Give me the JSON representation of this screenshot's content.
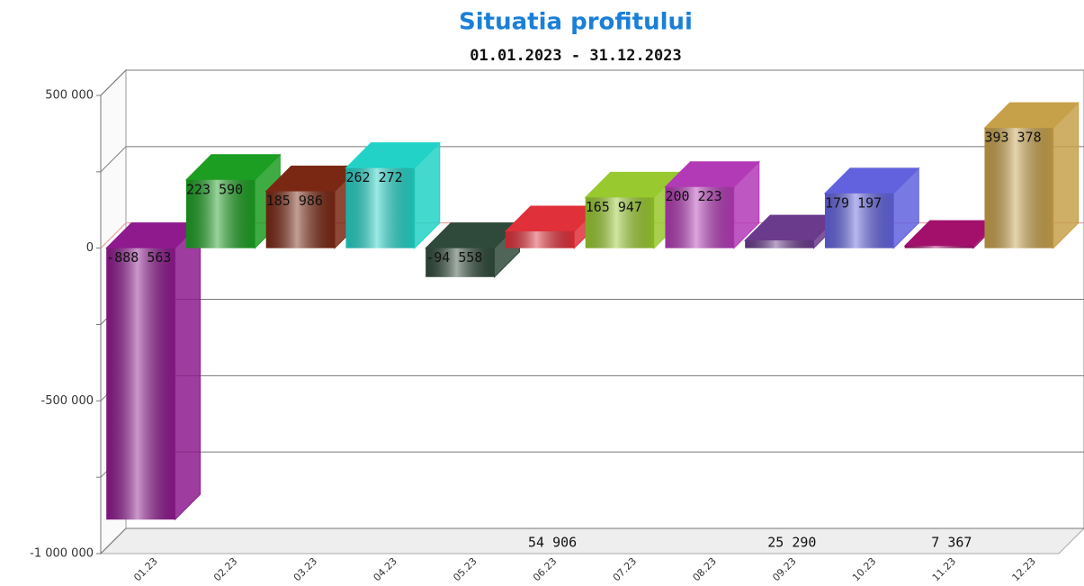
{
  "chart_data": {
    "type": "bar3d",
    "title": "Situatia profitului",
    "subtitle": "01.01.2023 - 31.12.2023",
    "categories": [
      "01.23",
      "02.23",
      "03.23",
      "04.23",
      "05.23",
      "06.23",
      "07.23",
      "08.23",
      "09.23",
      "10.23",
      "11.23",
      "12.23"
    ],
    "values": [
      -888563,
      223590,
      185986,
      262272,
      -94558,
      54906,
      165947,
      200223,
      25290,
      179197,
      7367,
      393378
    ],
    "value_labels": [
      "-888 563",
      "223 590",
      "185 986",
      "262 272",
      "-94 558",
      "54 906",
      "165 947",
      "200 223",
      "25 290",
      "179 197",
      "7 367",
      "393 378"
    ],
    "colors": [
      "#8e1a8e",
      "#1c9e22",
      "#7a2814",
      "#22d2c6",
      "#2f4a3a",
      "#e0303a",
      "#98c92e",
      "#b33ab6",
      "#6a3a8c",
      "#6262de",
      "#a3106c",
      "#c7a04a"
    ],
    "ylim": [
      -1000000,
      500000
    ],
    "yticks": [
      {
        "value": 500000,
        "label": "500 000"
      },
      0,
      {
        "value": -500000,
        "label": "-500 000"
      },
      {
        "value": -1000000,
        "label": "-1 000 000"
      }
    ],
    "minor_yticks": [
      250000,
      -250000,
      -750000
    ],
    "grid": true
  }
}
